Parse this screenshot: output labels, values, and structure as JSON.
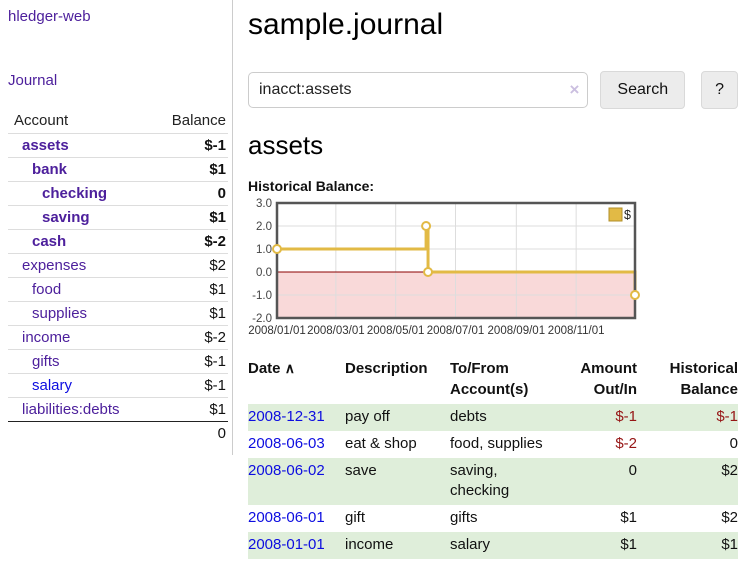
{
  "app": {
    "title": "hledger-web"
  },
  "sidebar": {
    "journal_link": "Journal",
    "headers": {
      "account": "Account",
      "balance": "Balance"
    },
    "accounts": [
      {
        "name": "assets",
        "balance": "$-1"
      },
      {
        "name": "bank",
        "balance": "$1"
      },
      {
        "name": "checking",
        "balance": "0"
      },
      {
        "name": "saving",
        "balance": "$1"
      },
      {
        "name": "cash",
        "balance": "$-2"
      },
      {
        "name": "expenses",
        "balance": "$2"
      },
      {
        "name": "food",
        "balance": "$1"
      },
      {
        "name": "supplies",
        "balance": "$1"
      },
      {
        "name": "income",
        "balance": "$-2"
      },
      {
        "name": "gifts",
        "balance": "$-1"
      },
      {
        "name": "salary",
        "balance": "$-1"
      },
      {
        "name": "liabilities:debts",
        "balance": "$1"
      }
    ],
    "total": "0"
  },
  "main": {
    "title": "sample.journal",
    "search": {
      "value": "inacct:assets",
      "clear_icon": "×",
      "button_label": "Search",
      "help_label": "?"
    },
    "account_heading": "assets",
    "chart_title": "Historical Balance:"
  },
  "chart_data": {
    "type": "line",
    "title": "Historical Balance",
    "step": true,
    "series": [
      {
        "name": "$",
        "color": "#e2ba45",
        "points": [
          [
            "2008-01-01",
            1
          ],
          [
            "2008-06-01",
            2
          ],
          [
            "2008-06-03",
            0
          ],
          [
            "2008-12-31",
            -1
          ]
        ]
      }
    ],
    "xlim": [
      "2008-01-01",
      "2008-12-31"
    ],
    "ylim": [
      -2,
      3
    ],
    "yticks": [
      "3.0",
      "2.0",
      "1.0",
      "0.0",
      "-1.0",
      "-2.0"
    ],
    "xticks": [
      "2008/01/01",
      "2008/03/01",
      "2008/05/01",
      "2008/07/01",
      "2008/09/01",
      "2008/11/01"
    ],
    "grid": true,
    "legend": {
      "position": "top-right",
      "label": "$"
    },
    "negative_fill": "#f9d9d9",
    "zero_line_color": "#8b0000",
    "grid_color": "#dddddd",
    "border_color": "#555555"
  },
  "register": {
    "headers": {
      "date": "Date",
      "sort_icon": "∧",
      "description": "Description",
      "accounts": "To/From Account(s)",
      "amount": "Amount Out/In",
      "balance": "Historical Balance"
    },
    "rows": [
      {
        "date": "2008-12-31",
        "description": "pay off",
        "accounts": "debts",
        "amount": "$-1",
        "balance": "$-1"
      },
      {
        "date": "2008-06-03",
        "description": "eat & shop",
        "accounts": "food, supplies",
        "amount": "$-2",
        "balance": "0"
      },
      {
        "date": "2008-06-02",
        "description": "save",
        "accounts": "saving, checking",
        "amount": "0",
        "balance": "$2"
      },
      {
        "date": "2008-06-01",
        "description": "gift",
        "accounts": "gifts",
        "amount": "$1",
        "balance": "$2"
      },
      {
        "date": "2008-01-01",
        "description": "income",
        "accounts": "salary",
        "amount": "$1",
        "balance": "$1"
      }
    ]
  }
}
